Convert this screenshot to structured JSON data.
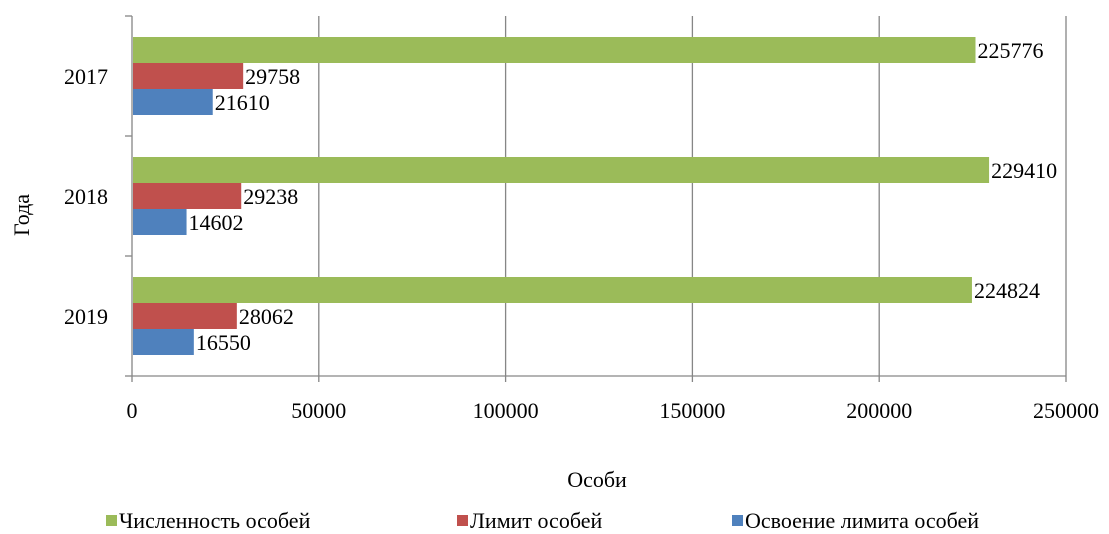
{
  "chart_data": {
    "type": "bar",
    "orientation": "horizontal",
    "categories": [
      "2017",
      "2018",
      "2019"
    ],
    "series": [
      {
        "name": "Численность особей",
        "color": "#9BBB59",
        "values": [
          225776,
          229410,
          224824
        ]
      },
      {
        "name": "Лимит особей",
        "color": "#C0504D",
        "values": [
          29758,
          29238,
          28062
        ]
      },
      {
        "name": "Освоение лимита особей",
        "color": "#4F81BD",
        "values": [
          21610,
          14602,
          16550
        ]
      }
    ],
    "xlabel": "Особи",
    "ylabel": "Года",
    "xlim": [
      0,
      250000
    ],
    "xticks": [
      "0",
      "50000",
      "100000",
      "150000",
      "200000",
      "250000"
    ],
    "grid": "vertical",
    "legend": "bottom"
  }
}
